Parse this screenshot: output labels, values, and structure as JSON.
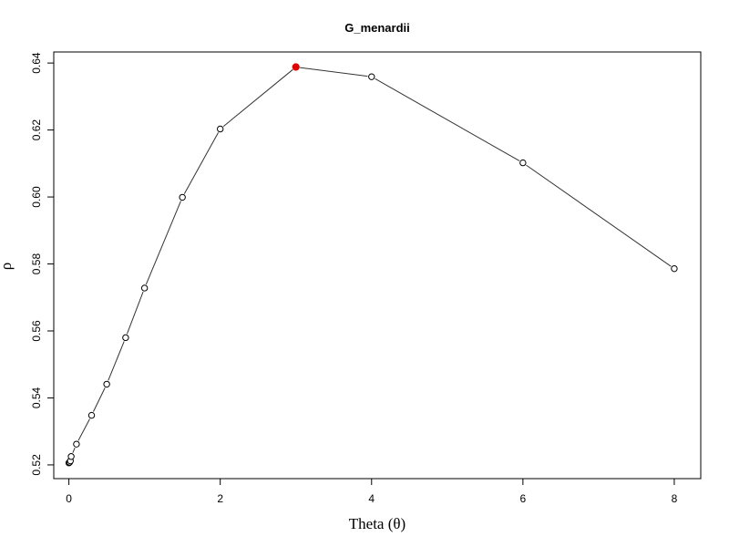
{
  "chart_data": {
    "type": "line",
    "title": "G_menardii",
    "xlabel": "Theta (θ)",
    "ylabel": "ρ",
    "xlim": [
      -0.2,
      8.35
    ],
    "ylim": [
      0.5159,
      0.6433
    ],
    "xticks": [
      0,
      2,
      4,
      6,
      8
    ],
    "xtick_labels": [
      "0",
      "2",
      "4",
      "6",
      "8"
    ],
    "yticks": [
      0.52,
      0.54,
      0.56,
      0.58,
      0.6,
      0.62,
      0.64
    ],
    "ytick_labels": [
      "0.52",
      "0.54",
      "0.56",
      "0.58",
      "0.60",
      "0.62",
      "0.64"
    ],
    "grid": false,
    "legend": "none",
    "series": [
      {
        "x": [
          0,
          0.01,
          0.02,
          0.03,
          0.1,
          0.3,
          0.5,
          0.75,
          1,
          1.5,
          2,
          3,
          4,
          6,
          8
        ],
        "y": [
          0.5206,
          0.5208,
          0.5212,
          0.5225,
          0.5262,
          0.5348,
          0.5441,
          0.558,
          0.5728,
          0.5999,
          0.6203,
          0.6388,
          0.6359,
          0.6102,
          0.5786
        ],
        "highlight_index": 11
      }
    ],
    "colors": {
      "line": "#333333",
      "marker_edge": "#000000",
      "marker_fill": "#ffffff",
      "highlight": "#e00000"
    }
  }
}
